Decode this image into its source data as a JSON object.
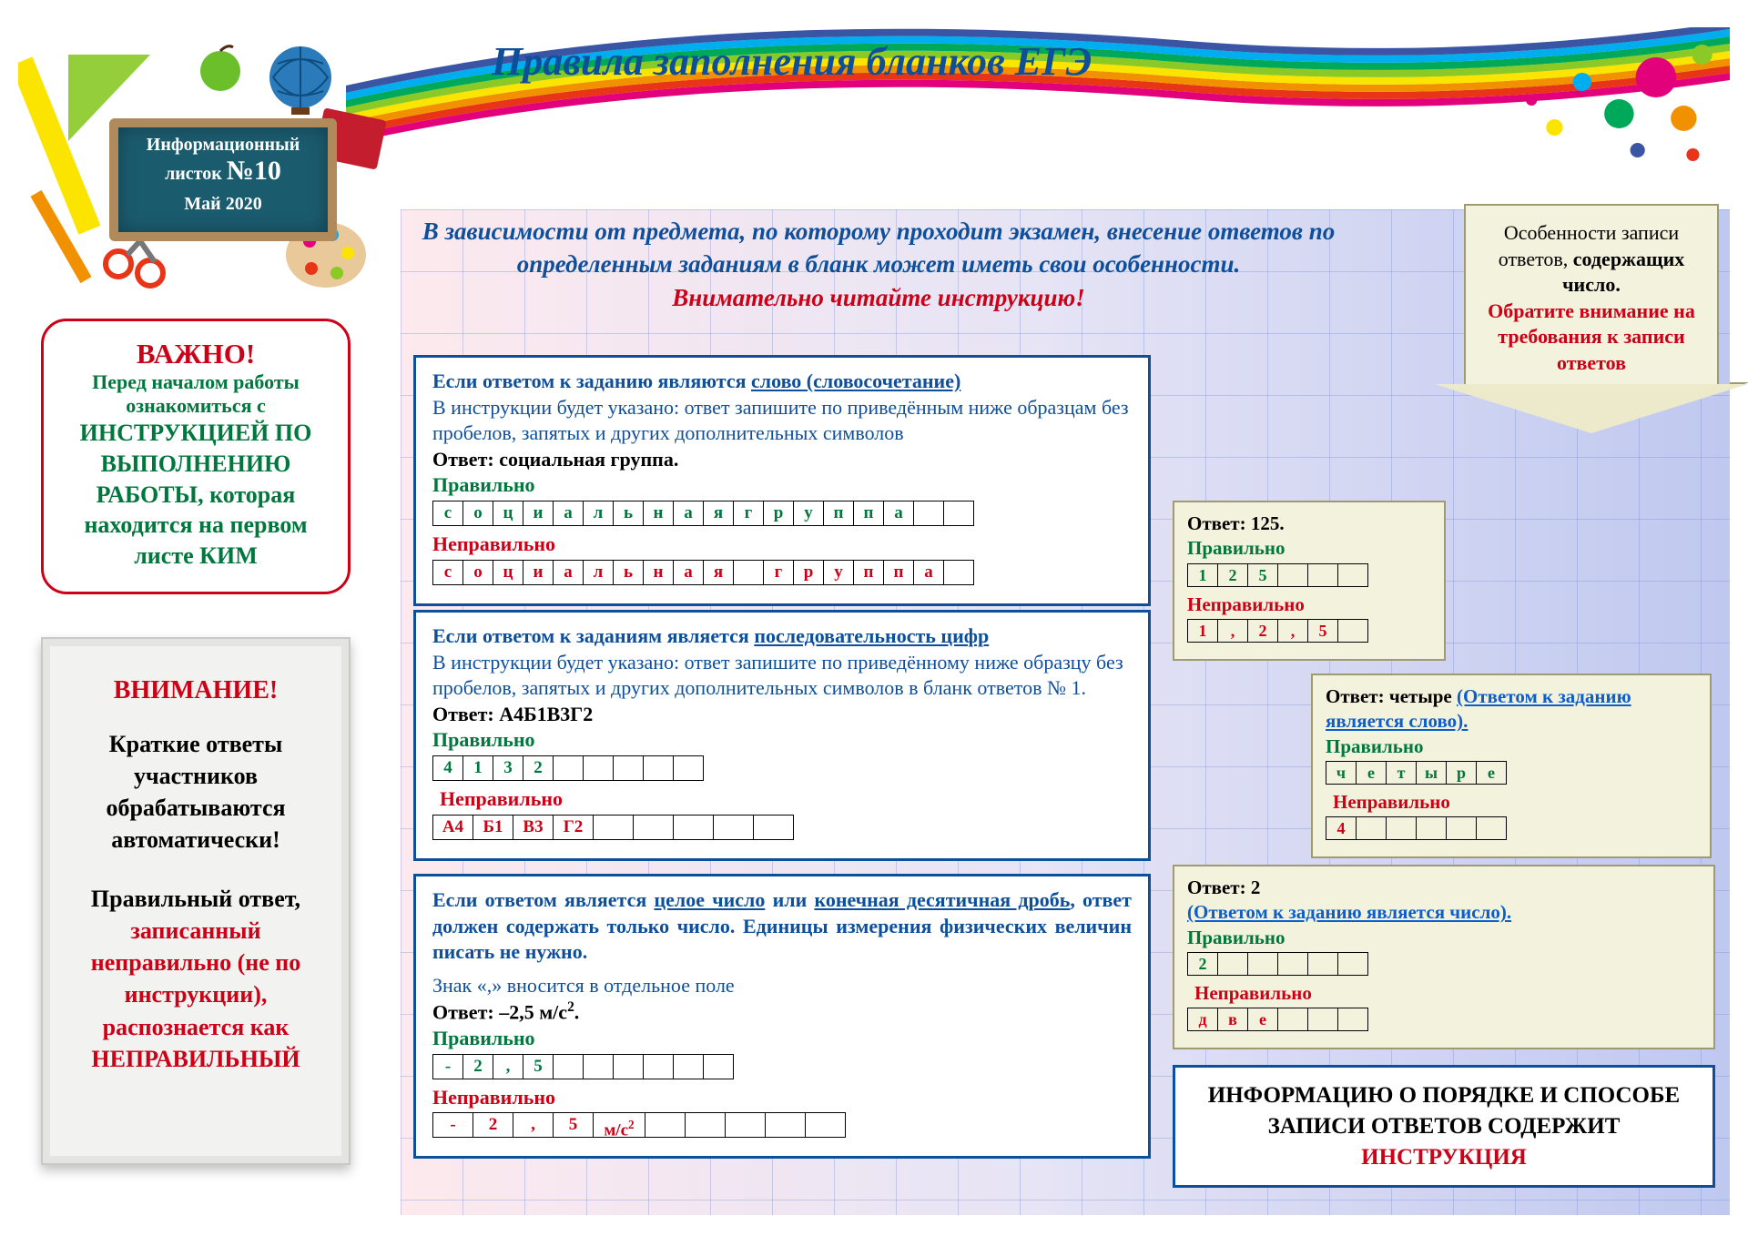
{
  "title": "Правила заполнения бланков ЕГЭ",
  "plaque": {
    "line1": "Информационный",
    "line2_a": "листок ",
    "line2_b": "№10",
    "line3": "Май 2020"
  },
  "important": {
    "hdr": "ВАЖНО!",
    "pre": "Перед началом работы ознакомиться с",
    "body": "ИНСТРУКЦИЕЙ ПО ВЫПОЛНЕНИЮ РАБОТЫ, которая находится на первом листе КИМ"
  },
  "attention": {
    "hdr": "ВНИМАНИЕ!",
    "p1": "Краткие ответы участников обрабатываются автоматически!",
    "p2_a": "Правильный ответ,",
    "p2_b": " записанный неправильно (не по инструкции),",
    "p2_c": " распознается как НЕПРАВИЛЬНЫЙ"
  },
  "intro": {
    "line1": "В зависимости от предмета, по которому проходит экзамен, внесение ответов по определенным заданиям в бланк может иметь свои особенности.",
    "line2": "Внимательно читайте инструкцию!"
  },
  "arrow": {
    "l1": "Особенности записи ответов,",
    "l2": "содержащих число.",
    "l3": "Обратите внимание на требования к записи ответов"
  },
  "rule1": {
    "lead_a": "Если ответом к заданию являются ",
    "lead_b": "слово (словосочетание)",
    "body": "В инструкции будет указано: ответ запишите по приведённым ниже образцам без пробелов, запятых и других дополнительных символов",
    "answer": "Ответ: социальная группа.",
    "correct": "Правильно",
    "cells_ok": [
      "с",
      "о",
      "ц",
      "и",
      "а",
      "л",
      "ь",
      "н",
      "а",
      "я",
      "г",
      "р",
      "у",
      "п",
      "п",
      "а",
      "",
      ""
    ],
    "wrong": "Неправильно",
    "cells_bad": [
      "с",
      "о",
      "ц",
      "и",
      "а",
      "л",
      "ь",
      "н",
      "а",
      "я",
      "",
      "г",
      "р",
      "у",
      "п",
      "п",
      "а",
      ""
    ]
  },
  "rule2": {
    "lead_a": "Если ответом к заданиям является ",
    "lead_b": "последовательность цифр",
    "body": "В инструкции будет указано: ответ запишите по приведённому ниже образцу без пробелов, запятых и других дополнительных символов в бланк ответов № 1.",
    "answer": "Ответ: А4Б1В3Г2",
    "correct": "Правильно",
    "cells_ok": [
      "4",
      "1",
      "3",
      "2",
      "",
      "",
      "",
      "",
      ""
    ],
    "wrong": "Неправильно",
    "cells_bad": [
      "А4",
      "Б1",
      "В3",
      "Г2",
      "",
      "",
      "",
      "",
      ""
    ]
  },
  "rule3": {
    "lead_a": "Если ответом является ",
    "lead_b": "целое число",
    "lead_c": " или ",
    "lead_d": "конечная десятичная дробь",
    "body": ", ответ должен содержать только число. Единицы измерения физических величин писать не нужно.",
    "note": "Знак «,» вносится в отдельное поле",
    "answer": "Ответ: –2,5 м/с².",
    "correct": "Правильно",
    "cells_ok": [
      "-",
      "2",
      ",",
      "5",
      "",
      "",
      "",
      "",
      "",
      ""
    ],
    "wrong": "Неправильно",
    "cells_bad": [
      "-",
      "2",
      ",",
      "5",
      "м/с²",
      "",
      "",
      "",
      "",
      ""
    ]
  },
  "mini1": {
    "answer": "Ответ: 125.",
    "correct": "Правильно",
    "cells_ok": [
      "1",
      "2",
      "5",
      "",
      "",
      ""
    ],
    "wrong": "Неправильно",
    "cells_bad": [
      "1",
      ",",
      "2",
      ",",
      "5",
      ""
    ]
  },
  "mini2": {
    "answer_a": "Ответ: четыре ",
    "link": "(Ответом к заданию является слово).",
    "correct": "Правильно",
    "cells_ok": [
      "ч",
      "е",
      "т",
      "ы",
      "р",
      "е"
    ],
    "wrong": "Неправильно",
    "cells_bad": [
      "4",
      "",
      "",
      "",
      "",
      ""
    ]
  },
  "mini3": {
    "answer": "Ответ: 2",
    "link": "(Ответом к заданию является число).",
    "correct": "Правильно",
    "cells_ok": [
      "2",
      "",
      "",
      "",
      "",
      ""
    ],
    "wrong": "Неправильно",
    "cells_bad": [
      "д",
      "в",
      "е",
      "",
      "",
      ""
    ]
  },
  "bottom": {
    "l1": "ИНФОРМАЦИЮ О ПОРЯДКЕ И СПОСОБЕ ЗАПИСИ ОТВЕТОВ СОДЕРЖИТ ",
    "l2": "ИНСТРУКЦИЯ"
  }
}
